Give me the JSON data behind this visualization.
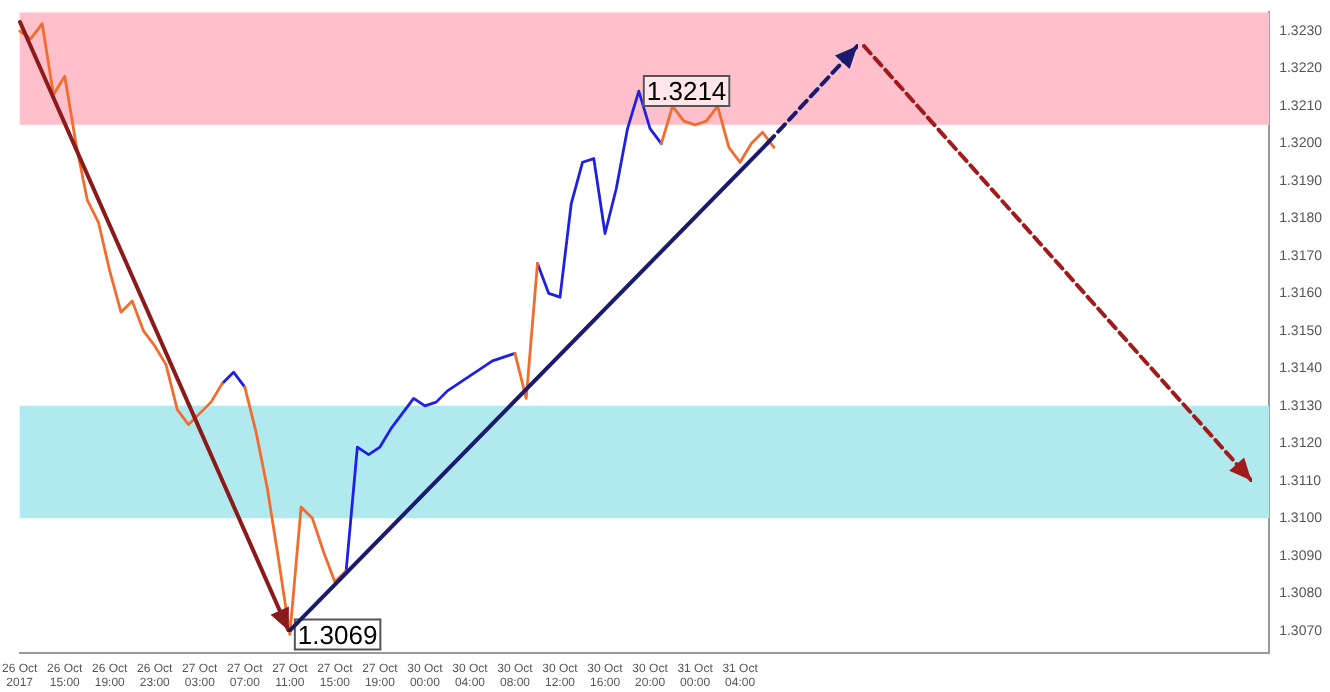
{
  "chart_data": {
    "type": "line",
    "categories": [
      "26 Oct 2017",
      null,
      null,
      null,
      "26 Oct 15:00",
      null,
      null,
      null,
      "26 Oct 19:00",
      null,
      null,
      null,
      "26 Oct 23:00",
      null,
      null,
      null,
      "27 Oct 03:00",
      null,
      null,
      null,
      "27 Oct 07:00",
      null,
      null,
      null,
      "27 Oct 11:00",
      null,
      null,
      null,
      "27 Oct 15:00",
      null,
      null,
      null,
      "27 Oct 19:00",
      null,
      null,
      null,
      "30 Oct 00:00",
      null,
      null,
      null,
      "30 Oct 04:00",
      null,
      null,
      null,
      "30 Oct 08:00",
      null,
      null,
      null,
      "30 Oct 12:00",
      null,
      null,
      null,
      "30 Oct 16:00",
      null,
      null,
      null,
      "30 Oct 20:00",
      null,
      null,
      null,
      "31 Oct 00:00",
      null,
      null,
      null,
      "31 Oct 04:00",
      null,
      null,
      null,
      null,
      null,
      null,
      null,
      null,
      null,
      null,
      null,
      null,
      null,
      null,
      null,
      null,
      null,
      null,
      null,
      null,
      null,
      null,
      null,
      null,
      null,
      null,
      null,
      null,
      null,
      null,
      null,
      null,
      null,
      null,
      null,
      null,
      null,
      null,
      null,
      null,
      null,
      null,
      null,
      null,
      null,
      null,
      null
    ],
    "series": [
      {
        "type": "line",
        "color": "#f26c2e",
        "values": [
          1.323,
          1.3228,
          1.3232,
          1.3213,
          1.3218,
          1.32,
          1.3185,
          1.3179,
          1.3166,
          1.3155,
          1.3158,
          1.315,
          1.3146,
          1.3141,
          1.3129,
          1.3125,
          1.3128,
          1.3131,
          1.3136,
          null,
          1.3135,
          1.3123,
          1.3108,
          1.3089,
          1.3069,
          1.3103,
          1.31,
          1.3091,
          1.3083,
          1.3086,
          null,
          null,
          null,
          null,
          null,
          null,
          null,
          null,
          null,
          null,
          null,
          null,
          null,
          null,
          1.3144,
          1.3132,
          1.3168,
          null,
          null,
          null,
          null,
          null,
          null,
          null,
          null,
          null,
          null,
          1.32,
          1.321,
          1.3206,
          1.3205,
          1.3206,
          1.321,
          1.3199,
          1.3195,
          1.32,
          1.3203,
          1.3199,
          null,
          null,
          null,
          null,
          null,
          null,
          null,
          null,
          null,
          null,
          null,
          null,
          null,
          null,
          null,
          null,
          null,
          null,
          null,
          null,
          null,
          null,
          null,
          null,
          null,
          null,
          null,
          null,
          null,
          null,
          null,
          null,
          null,
          null,
          null,
          null,
          null,
          null,
          null,
          null,
          null,
          null,
          null,
          null
        ]
      },
      {
        "type": "line",
        "color": "#1f1fe6",
        "values": [
          null,
          null,
          null,
          null,
          null,
          null,
          null,
          null,
          null,
          null,
          null,
          null,
          null,
          null,
          null,
          null,
          null,
          null,
          1.3136,
          1.3139,
          1.3135,
          null,
          null,
          null,
          null,
          null,
          null,
          null,
          null,
          1.3086,
          1.3119,
          1.3117,
          1.3119,
          1.3124,
          1.3128,
          1.3132,
          1.313,
          1.3131,
          1.3134,
          1.3136,
          1.3138,
          1.314,
          1.3142,
          1.3143,
          1.3144,
          null,
          1.3168,
          1.316,
          1.3159,
          1.3184,
          1.3195,
          1.3196,
          1.3176,
          1.3188,
          1.3204,
          1.3214,
          1.3204,
          1.32,
          null,
          null,
          null,
          null,
          null,
          null,
          null,
          null,
          null,
          null,
          null,
          null,
          null,
          null,
          null,
          null,
          null,
          null,
          null,
          null,
          null,
          null,
          null,
          null,
          null,
          null,
          null,
          null,
          null,
          null,
          null,
          null,
          null,
          null,
          null,
          null,
          null,
          null,
          null,
          null,
          null,
          null,
          null,
          null,
          null,
          null,
          null,
          null,
          null,
          null,
          null,
          null,
          null,
          null
        ]
      }
    ],
    "ylim": [
      1.3064,
      1.3235
    ],
    "yticks": [
      {
        "value": 1.307,
        "label": "1.3070"
      },
      {
        "value": 1.308,
        "label": "1.3080"
      },
      {
        "value": 1.309,
        "label": "1.3090"
      },
      {
        "value": 1.31,
        "label": "1.3100"
      },
      {
        "value": 1.311,
        "label": "1.3110"
      },
      {
        "value": 1.312,
        "label": "1.3120"
      },
      {
        "value": 1.313,
        "label": "1.3130"
      },
      {
        "value": 1.314,
        "label": "1.3140"
      },
      {
        "value": 1.315,
        "label": "1.3150"
      },
      {
        "value": 1.316,
        "label": "1.3160"
      },
      {
        "value": 1.317,
        "label": "1.3170"
      },
      {
        "value": 1.318,
        "label": "1.3180"
      },
      {
        "value": 1.319,
        "label": "1.3190"
      },
      {
        "value": 1.32,
        "label": "1.3200"
      },
      {
        "value": 1.321,
        "label": "1.3210"
      },
      {
        "value": 1.322,
        "label": "1.3220"
      },
      {
        "value": 1.323,
        "label": "1.3230"
      }
    ],
    "bands": [
      {
        "axis": "y",
        "from": 1.3205,
        "to": 1.3235,
        "color": "#ffc0cb"
      },
      {
        "axis": "y",
        "from": 1.31,
        "to": 1.313,
        "color": "#b0eaee"
      }
    ],
    "annotations": [
      {
        "text": "1.3214",
        "y": 1.3214
      },
      {
        "text": "1.3069",
        "y": 1.3069
      }
    ],
    "grid": false,
    "legend": false,
    "marker": "none"
  }
}
